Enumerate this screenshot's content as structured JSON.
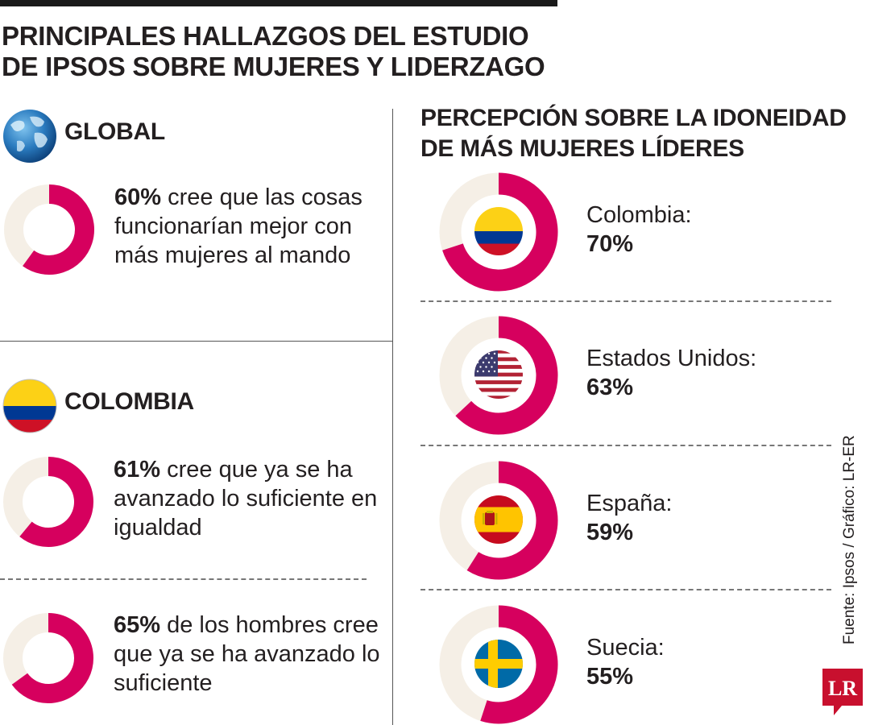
{
  "title": {
    "line1": "PRINCIPALES HALLAZGOS DEL ESTUDIO",
    "line2": "DE IPSOS SOBRE MUJERES Y LIDERZAGO"
  },
  "left": {
    "global": {
      "heading": "GLOBAL",
      "icon": "globe-icon",
      "stat": {
        "pct_label": "60%",
        "text": " cree que las cosas funcionarían mejor con más mujeres al mando",
        "value": 60
      }
    },
    "colombia": {
      "heading": "COLOMBIA",
      "icon": "colombia-flag-icon",
      "stats": [
        {
          "pct_label": "61%",
          "text": " cree que ya se ha avanzado lo suficiente en igualdad",
          "value": 61
        },
        {
          "pct_label": "65%",
          "text": " de los hombres cree que ya se ha avanzado lo suficiente",
          "value": 65
        }
      ]
    }
  },
  "right": {
    "title_line1": "PERCEPCIÓN SOBRE LA IDONEIDAD",
    "title_line2": "DE MÁS MUJERES LÍDERES"
  },
  "chart_data": {
    "type": "pie",
    "subtype": "donut",
    "title": "PERCEPCIÓN SOBRE LA IDONEIDAD DE MÁS MUJERES LÍDERES",
    "categories": [
      "Colombia:",
      "Estados Unidos:",
      "España:",
      "Suecia:"
    ],
    "values": [
      70,
      63,
      59,
      55
    ],
    "labels": [
      "70%",
      "63%",
      "59%",
      "55%"
    ],
    "flags": [
      "colombia-flag-icon",
      "usa-flag-icon",
      "spain-flag-icon",
      "sweden-flag-icon"
    ]
  },
  "source": "Fuente: Ipsos / Gráfico: LR-ER",
  "logo": "LR",
  "colors": {
    "accent": "#d6005e",
    "track": "#f5efe6",
    "text": "#231f20"
  }
}
